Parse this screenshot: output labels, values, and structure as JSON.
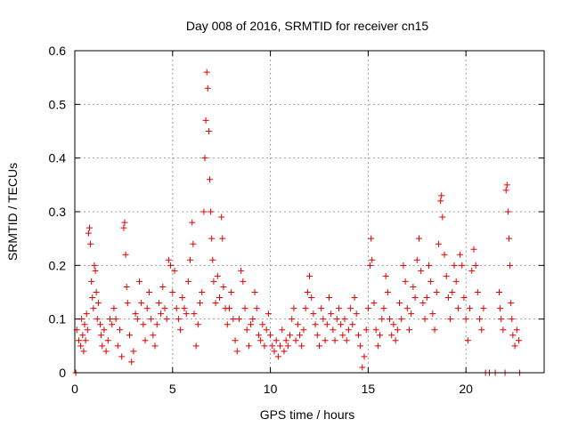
{
  "chart_data": {
    "type": "scatter",
    "title": "Day 008 of 2016, SRMTID for receiver cn15",
    "xlabel": "GPS time / hours",
    "ylabel": "SRMTID / TECUs",
    "xlim": [
      0,
      24
    ],
    "ylim": [
      0,
      0.6
    ],
    "xticks": [
      0,
      5,
      10,
      15,
      20
    ],
    "xtick_labels": [
      "0",
      "5",
      "10",
      "15",
      "20"
    ],
    "yticks": [
      0,
      0.1,
      0.2,
      0.3,
      0.4,
      0.5,
      0.6
    ],
    "ytick_labels": [
      "0",
      "0.1",
      "0.2",
      "0.3",
      "0.4",
      "0.5",
      "0.6"
    ],
    "grid": true,
    "marker": "+",
    "series": [
      {
        "name": "SRMTID",
        "color": "#e00000",
        "points": [
          [
            0.05,
            0.0
          ],
          [
            0.1,
            0.08
          ],
          [
            0.2,
            0.06
          ],
          [
            0.3,
            0.05
          ],
          [
            0.35,
            0.1
          ],
          [
            0.4,
            0.07
          ],
          [
            0.45,
            0.04
          ],
          [
            0.5,
            0.09
          ],
          [
            0.55,
            0.06
          ],
          [
            0.6,
            0.11
          ],
          [
            0.65,
            0.08
          ],
          [
            0.7,
            0.26
          ],
          [
            0.75,
            0.27
          ],
          [
            0.8,
            0.24
          ],
          [
            0.85,
            0.17
          ],
          [
            0.9,
            0.14
          ],
          [
            0.95,
            0.12
          ],
          [
            1.0,
            0.2
          ],
          [
            1.05,
            0.19
          ],
          [
            1.1,
            0.15
          ],
          [
            1.15,
            0.1
          ],
          [
            1.2,
            0.13
          ],
          [
            1.3,
            0.09
          ],
          [
            1.35,
            0.07
          ],
          [
            1.4,
            0.05
          ],
          [
            1.5,
            0.08
          ],
          [
            1.6,
            0.04
          ],
          [
            1.7,
            0.06
          ],
          [
            1.8,
            0.1
          ],
          [
            1.9,
            0.09
          ],
          [
            2.0,
            0.12
          ],
          [
            2.1,
            0.1
          ],
          [
            2.2,
            0.05
          ],
          [
            2.3,
            0.08
          ],
          [
            2.4,
            0.03
          ],
          [
            2.5,
            0.27
          ],
          [
            2.55,
            0.28
          ],
          [
            2.6,
            0.22
          ],
          [
            2.65,
            0.16
          ],
          [
            2.7,
            0.13
          ],
          [
            2.8,
            0.07
          ],
          [
            2.9,
            0.02
          ],
          [
            3.0,
            0.04
          ],
          [
            3.1,
            0.11
          ],
          [
            3.2,
            0.1
          ],
          [
            3.3,
            0.17
          ],
          [
            3.4,
            0.13
          ],
          [
            3.5,
            0.09
          ],
          [
            3.6,
            0.06
          ],
          [
            3.7,
            0.12
          ],
          [
            3.8,
            0.15
          ],
          [
            3.9,
            0.1
          ],
          [
            4.0,
            0.07
          ],
          [
            4.1,
            0.05
          ],
          [
            4.2,
            0.09
          ],
          [
            4.3,
            0.13
          ],
          [
            4.4,
            0.11
          ],
          [
            4.5,
            0.16
          ],
          [
            4.6,
            0.12
          ],
          [
            4.7,
            0.1
          ],
          [
            4.8,
            0.21
          ],
          [
            4.9,
            0.2
          ],
          [
            5.0,
            0.15
          ],
          [
            5.1,
            0.19
          ],
          [
            5.2,
            0.12
          ],
          [
            5.3,
            0.1
          ],
          [
            5.4,
            0.08
          ],
          [
            5.5,
            0.14
          ],
          [
            5.6,
            0.12
          ],
          [
            5.7,
            0.11
          ],
          [
            5.8,
            0.17
          ],
          [
            5.9,
            0.21
          ],
          [
            6.0,
            0.28
          ],
          [
            6.05,
            0.24
          ],
          [
            6.1,
            0.11
          ],
          [
            6.2,
            0.05
          ],
          [
            6.3,
            0.09
          ],
          [
            6.4,
            0.13
          ],
          [
            6.5,
            0.15
          ],
          [
            6.6,
            0.3
          ],
          [
            6.65,
            0.4
          ],
          [
            6.7,
            0.47
          ],
          [
            6.75,
            0.56
          ],
          [
            6.8,
            0.53
          ],
          [
            6.85,
            0.45
          ],
          [
            6.9,
            0.36
          ],
          [
            6.95,
            0.3
          ],
          [
            7.0,
            0.25
          ],
          [
            7.05,
            0.21
          ],
          [
            7.1,
            0.17
          ],
          [
            7.2,
            0.13
          ],
          [
            7.3,
            0.18
          ],
          [
            7.4,
            0.14
          ],
          [
            7.5,
            0.29
          ],
          [
            7.55,
            0.25
          ],
          [
            7.6,
            0.16
          ],
          [
            7.7,
            0.12
          ],
          [
            7.8,
            0.09
          ],
          [
            7.9,
            0.12
          ],
          [
            8.0,
            0.15
          ],
          [
            8.1,
            0.1
          ],
          [
            8.2,
            0.06
          ],
          [
            8.3,
            0.04
          ],
          [
            8.4,
            0.1
          ],
          [
            8.5,
            0.19
          ],
          [
            8.6,
            0.17
          ],
          [
            8.7,
            0.12
          ],
          [
            8.8,
            0.08
          ],
          [
            8.9,
            0.05
          ],
          [
            9.0,
            0.09
          ],
          [
            9.1,
            0.1
          ],
          [
            9.2,
            0.15
          ],
          [
            9.3,
            0.12
          ],
          [
            9.4,
            0.07
          ],
          [
            9.5,
            0.06
          ],
          [
            9.6,
            0.09
          ],
          [
            9.7,
            0.05
          ],
          [
            9.8,
            0.08
          ],
          [
            9.9,
            0.11
          ],
          [
            10.0,
            0.07
          ],
          [
            10.1,
            0.05
          ],
          [
            10.2,
            0.04
          ],
          [
            10.3,
            0.06
          ],
          [
            10.4,
            0.03
          ],
          [
            10.5,
            0.05
          ],
          [
            10.6,
            0.08
          ],
          [
            10.7,
            0.04
          ],
          [
            10.8,
            0.06
          ],
          [
            10.9,
            0.05
          ],
          [
            11.0,
            0.07
          ],
          [
            11.1,
            0.1
          ],
          [
            11.2,
            0.12
          ],
          [
            11.3,
            0.06
          ],
          [
            11.4,
            0.09
          ],
          [
            11.5,
            0.07
          ],
          [
            11.6,
            0.05
          ],
          [
            11.7,
            0.08
          ],
          [
            11.8,
            0.12
          ],
          [
            11.9,
            0.15
          ],
          [
            12.0,
            0.18
          ],
          [
            12.1,
            0.14
          ],
          [
            12.2,
            0.11
          ],
          [
            12.3,
            0.09
          ],
          [
            12.4,
            0.07
          ],
          [
            12.5,
            0.05
          ],
          [
            12.6,
            0.12
          ],
          [
            12.7,
            0.1
          ],
          [
            12.8,
            0.06
          ],
          [
            12.9,
            0.09
          ],
          [
            13.0,
            0.14
          ],
          [
            13.1,
            0.11
          ],
          [
            13.2,
            0.08
          ],
          [
            13.3,
            0.06
          ],
          [
            13.4,
            0.1
          ],
          [
            13.5,
            0.12
          ],
          [
            13.6,
            0.09
          ],
          [
            13.7,
            0.07
          ],
          [
            13.8,
            0.1
          ],
          [
            13.9,
            0.06
          ],
          [
            14.0,
            0.08
          ],
          [
            14.1,
            0.12
          ],
          [
            14.2,
            0.09
          ],
          [
            14.3,
            0.14
          ],
          [
            14.4,
            0.11
          ],
          [
            14.5,
            0.07
          ],
          [
            14.6,
            0.05
          ],
          [
            14.7,
            0.01
          ],
          [
            14.8,
            0.03
          ],
          [
            14.9,
            0.08
          ],
          [
            15.0,
            0.12
          ],
          [
            15.1,
            0.2
          ],
          [
            15.15,
            0.25
          ],
          [
            15.2,
            0.21
          ],
          [
            15.3,
            0.13
          ],
          [
            15.4,
            0.08
          ],
          [
            15.5,
            0.05
          ],
          [
            15.6,
            0.07
          ],
          [
            15.7,
            0.1
          ],
          [
            15.8,
            0.12
          ],
          [
            15.9,
            0.18
          ],
          [
            16.0,
            0.15
          ],
          [
            16.1,
            0.1
          ],
          [
            16.2,
            0.07
          ],
          [
            16.3,
            0.09
          ],
          [
            16.4,
            0.06
          ],
          [
            16.5,
            0.08
          ],
          [
            16.6,
            0.13
          ],
          [
            16.7,
            0.1
          ],
          [
            16.8,
            0.2
          ],
          [
            16.9,
            0.17
          ],
          [
            17.0,
            0.12
          ],
          [
            17.1,
            0.08
          ],
          [
            17.2,
            0.11
          ],
          [
            17.3,
            0.16
          ],
          [
            17.4,
            0.14
          ],
          [
            17.5,
            0.21
          ],
          [
            17.6,
            0.25
          ],
          [
            17.7,
            0.19
          ],
          [
            17.8,
            0.13
          ],
          [
            17.9,
            0.1
          ],
          [
            18.0,
            0.14
          ],
          [
            18.1,
            0.2
          ],
          [
            18.2,
            0.17
          ],
          [
            18.3,
            0.11
          ],
          [
            18.4,
            0.08
          ],
          [
            18.5,
            0.15
          ],
          [
            18.6,
            0.24
          ],
          [
            18.7,
            0.32
          ],
          [
            18.75,
            0.33
          ],
          [
            18.8,
            0.29
          ],
          [
            18.9,
            0.22
          ],
          [
            19.0,
            0.18
          ],
          [
            19.1,
            0.14
          ],
          [
            19.2,
            0.1
          ],
          [
            19.3,
            0.15
          ],
          [
            19.4,
            0.2
          ],
          [
            19.5,
            0.17
          ],
          [
            19.6,
            0.12
          ],
          [
            19.7,
            0.22
          ],
          [
            19.8,
            0.2
          ],
          [
            19.9,
            0.14
          ],
          [
            20.0,
            0.1
          ],
          [
            20.1,
            0.06
          ],
          [
            20.2,
            0.12
          ],
          [
            20.3,
            0.19
          ],
          [
            20.4,
            0.23
          ],
          [
            20.5,
            0.2
          ],
          [
            20.6,
            0.15
          ],
          [
            20.7,
            0.1
          ],
          [
            20.8,
            0.08
          ],
          [
            20.9,
            0.12
          ],
          [
            21.0,
            0.0
          ],
          [
            21.2,
            0.0
          ],
          [
            21.5,
            0.0
          ],
          [
            21.7,
            0.15
          ],
          [
            21.75,
            0.12
          ],
          [
            21.8,
            0.1
          ],
          [
            21.9,
            0.08
          ],
          [
            22.0,
            0.0
          ],
          [
            22.05,
            0.34
          ],
          [
            22.1,
            0.35
          ],
          [
            22.15,
            0.3
          ],
          [
            22.2,
            0.25
          ],
          [
            22.25,
            0.2
          ],
          [
            22.3,
            0.13
          ],
          [
            22.35,
            0.1
          ],
          [
            22.4,
            0.07
          ],
          [
            22.5,
            0.05
          ],
          [
            22.6,
            0.08
          ],
          [
            22.7,
            0.06
          ],
          [
            22.75,
            0.0
          ]
        ]
      }
    ]
  }
}
